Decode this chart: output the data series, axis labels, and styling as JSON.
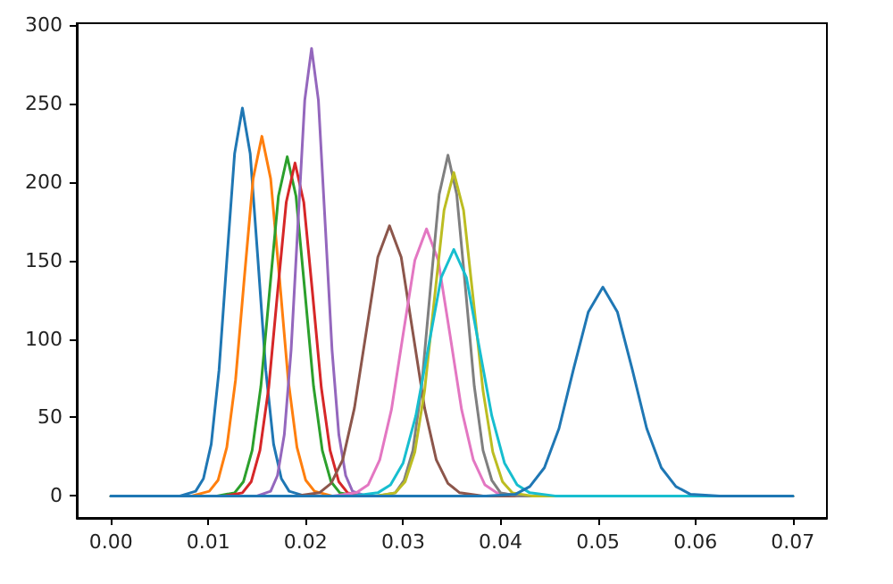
{
  "chart_data": {
    "type": "line",
    "xlim": [
      -0.0035,
      0.0735
    ],
    "ylim": [
      -14,
      301
    ],
    "xticks": [
      {
        "value": 0,
        "label": "0.00"
      },
      {
        "value": 0.01,
        "label": "0.01"
      },
      {
        "value": 0.02,
        "label": "0.02"
      },
      {
        "value": 0.03,
        "label": "0.03"
      },
      {
        "value": 0.04,
        "label": "0.04"
      },
      {
        "value": 0.05,
        "label": "0.05"
      },
      {
        "value": 0.06,
        "label": "0.06"
      },
      {
        "value": 0.07,
        "label": "0.07"
      }
    ],
    "yticks": [
      0,
      50,
      100,
      150,
      200,
      250,
      300
    ],
    "marker": "none",
    "line_style": "solid",
    "series": [
      {
        "color": "#1f77b4",
        "x": [
          0,
          0.0071,
          0.0087,
          0.0095,
          0.0103,
          0.0111,
          0.0119,
          0.0127,
          0.0135,
          0.0143,
          0.0151,
          0.0159,
          0.0167,
          0.0175,
          0.0183,
          0.0199,
          0.07
        ],
        "values": [
          0,
          0,
          3,
          11,
          33,
          80,
          150,
          218,
          247,
          218,
          150,
          80,
          33,
          11,
          3,
          0,
          0
        ]
      },
      {
        "color": "#ff7f0e",
        "x": [
          0,
          0.0083,
          0.0101,
          0.011,
          0.0119,
          0.0128,
          0.0137,
          0.0146,
          0.0155,
          0.0164,
          0.0173,
          0.0182,
          0.0191,
          0.02,
          0.0209,
          0.0227,
          0.07
        ],
        "values": [
          0,
          0,
          3,
          10,
          31,
          74,
          139,
          202,
          229,
          202,
          139,
          74,
          31,
          10,
          3,
          0,
          0
        ]
      },
      {
        "color": "#2ca02c",
        "x": [
          0,
          0.0109,
          0.0127,
          0.0136,
          0.0145,
          0.0154,
          0.0163,
          0.0172,
          0.0181,
          0.019,
          0.0199,
          0.0208,
          0.0217,
          0.0226,
          0.0235,
          0.0253,
          0.07
        ],
        "values": [
          0,
          0,
          2,
          9,
          29,
          70,
          131,
          191,
          216,
          191,
          131,
          70,
          29,
          9,
          2,
          0,
          0
        ]
      },
      {
        "color": "#d62728",
        "x": [
          0,
          0.0117,
          0.0135,
          0.0144,
          0.0153,
          0.0162,
          0.0171,
          0.018,
          0.0189,
          0.0198,
          0.0207,
          0.0216,
          0.0225,
          0.0234,
          0.0243,
          0.0261,
          0.07
        ],
        "values": [
          0,
          0,
          2,
          9,
          29,
          69,
          129,
          187,
          212,
          187,
          129,
          69,
          29,
          9,
          2,
          0,
          0
        ]
      },
      {
        "color": "#9467bd",
        "x": [
          0,
          0.015,
          0.0164,
          0.0171,
          0.0178,
          0.0185,
          0.0192,
          0.0199,
          0.0206,
          0.0213,
          0.022,
          0.0227,
          0.0234,
          0.0241,
          0.0248,
          0.0262,
          0.07
        ],
        "values": [
          0,
          0,
          3,
          13,
          39,
          93,
          173,
          252,
          285,
          252,
          173,
          93,
          39,
          13,
          3,
          0,
          0
        ]
      },
      {
        "color": "#8c564b",
        "x": [
          0,
          0.019,
          0.0214,
          0.0226,
          0.0238,
          0.025,
          0.0262,
          0.0274,
          0.0286,
          0.0298,
          0.031,
          0.0322,
          0.0334,
          0.0346,
          0.0358,
          0.0382,
          0.07
        ],
        "values": [
          0,
          0,
          2,
          8,
          23,
          56,
          104,
          152,
          172,
          152,
          104,
          56,
          23,
          8,
          2,
          0,
          0
        ]
      },
      {
        "color": "#e377c2",
        "x": [
          0,
          0.0228,
          0.0252,
          0.0264,
          0.0276,
          0.0288,
          0.03,
          0.0312,
          0.0324,
          0.0336,
          0.0348,
          0.036,
          0.0372,
          0.0384,
          0.0396,
          0.042,
          0.07
        ],
        "values": [
          0,
          0,
          2,
          7,
          23,
          55,
          103,
          150,
          170,
          150,
          103,
          55,
          23,
          7,
          2,
          0,
          0
        ]
      },
      {
        "color": "#7f7f7f",
        "x": [
          0,
          0.0274,
          0.0292,
          0.0301,
          0.031,
          0.0319,
          0.0328,
          0.0337,
          0.0346,
          0.0355,
          0.0364,
          0.0373,
          0.0382,
          0.0391,
          0.04,
          0.0418,
          0.07
        ],
        "values": [
          0,
          0,
          2,
          10,
          29,
          70,
          132,
          192,
          217,
          192,
          132,
          70,
          29,
          10,
          2,
          0,
          0
        ]
      },
      {
        "color": "#bcbd22",
        "x": [
          0,
          0.0272,
          0.0292,
          0.0302,
          0.0312,
          0.0322,
          0.0332,
          0.0342,
          0.0352,
          0.0362,
          0.0372,
          0.0382,
          0.0392,
          0.0402,
          0.0412,
          0.0432,
          0.07
        ],
        "values": [
          0,
          0,
          2,
          9,
          28,
          67,
          125,
          182,
          206,
          182,
          125,
          67,
          28,
          9,
          2,
          0,
          0
        ]
      },
      {
        "color": "#17becf",
        "x": [
          0,
          0.0248,
          0.0274,
          0.0287,
          0.03,
          0.0313,
          0.0326,
          0.0339,
          0.0352,
          0.0365,
          0.0378,
          0.0391,
          0.0404,
          0.0417,
          0.043,
          0.0456,
          0.07
        ],
        "values": [
          0,
          0,
          2,
          7,
          21,
          51,
          95,
          139,
          157,
          139,
          95,
          51,
          21,
          7,
          2,
          0,
          0
        ]
      },
      {
        "color": "#1f77b4",
        "x": [
          0,
          0.0385,
          0.0415,
          0.043,
          0.0445,
          0.046,
          0.0475,
          0.049,
          0.0505,
          0.052,
          0.0535,
          0.055,
          0.0565,
          0.058,
          0.0595,
          0.0625,
          0.07
        ],
        "values": [
          0,
          0,
          1,
          6,
          18,
          43,
          81,
          117,
          133,
          117,
          81,
          43,
          18,
          6,
          1,
          0,
          0
        ]
      }
    ]
  }
}
